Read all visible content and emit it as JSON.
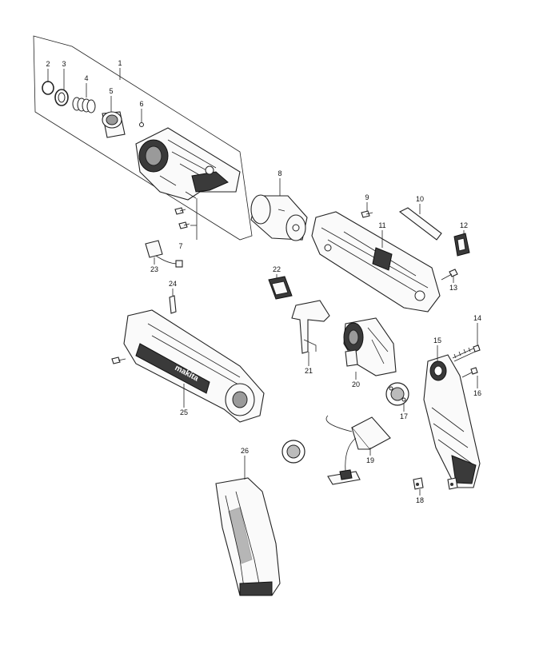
{
  "diagram": {
    "callouts": [
      "1",
      "2",
      "3",
      "4",
      "5",
      "6",
      "7",
      "8",
      "9",
      "10",
      "11",
      "12",
      "13",
      "14",
      "15",
      "16",
      "17",
      "18",
      "19",
      "20",
      "21",
      "22",
      "23",
      "24",
      "25",
      "26"
    ]
  }
}
